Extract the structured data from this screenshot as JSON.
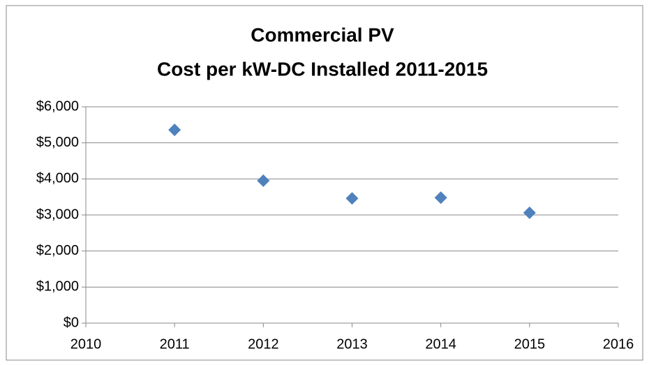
{
  "chart_data": {
    "type": "scatter",
    "title": [
      "Commercial PV",
      "Cost per kW-DC Installed 2011-2015"
    ],
    "x": [
      2011,
      2012,
      2013,
      2014,
      2015
    ],
    "values": [
      5360,
      3950,
      3460,
      3480,
      3060
    ],
    "color": "#4f81bd",
    "xlim": [
      2010,
      2016
    ],
    "xticks": [
      2010,
      2011,
      2012,
      2013,
      2014,
      2015,
      2016
    ],
    "ylim": [
      0,
      6000
    ],
    "yticks": [
      {
        "value": 0,
        "label": "$0"
      },
      {
        "value": 1000,
        "label": "$1,000"
      },
      {
        "value": 2000,
        "label": "$2,000"
      },
      {
        "value": 3000,
        "label": "$3,000"
      },
      {
        "value": 4000,
        "label": "$4,000"
      },
      {
        "value": 5000,
        "label": "$5,000"
      },
      {
        "value": 6000,
        "label": "$6,000"
      }
    ],
    "grid": true
  }
}
